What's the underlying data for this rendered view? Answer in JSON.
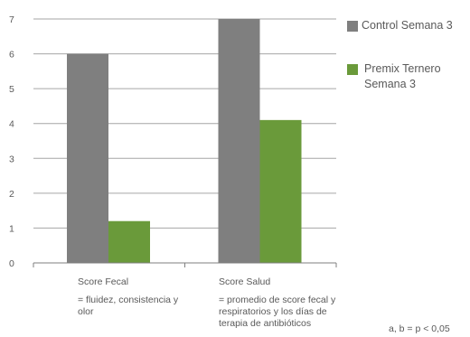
{
  "chart_data": {
    "type": "bar",
    "categories": [
      "Score Fecal",
      "Score Salud"
    ],
    "category_descriptions": [
      "= fluidez, consistencia y olor",
      "= promedio de score fecal y respiratorios y los días de terapia de antibióticos"
    ],
    "series": [
      {
        "name": "Control Semana 3",
        "values": [
          6,
          7
        ],
        "color": "#7f7f7f"
      },
      {
        "name": "Premix Ternero Semana 3",
        "values": [
          1.2,
          4.1
        ],
        "color": "#6a9a3a"
      }
    ],
    "ylim": [
      0,
      7
    ],
    "yticks": [
      "0",
      "1",
      "2",
      "3",
      "4",
      "5",
      "6",
      "7"
    ],
    "grid": true,
    "legend_position": "right",
    "title": "",
    "xlabel": "",
    "ylabel": ""
  },
  "legend": {
    "items": [
      {
        "label": "Control Semana 3",
        "color": "#7f7f7f"
      },
      {
        "label": "Premix Ternero Semana 3",
        "color": "#6a9a3a"
      }
    ]
  },
  "footnote": "a, b = p < 0,05"
}
